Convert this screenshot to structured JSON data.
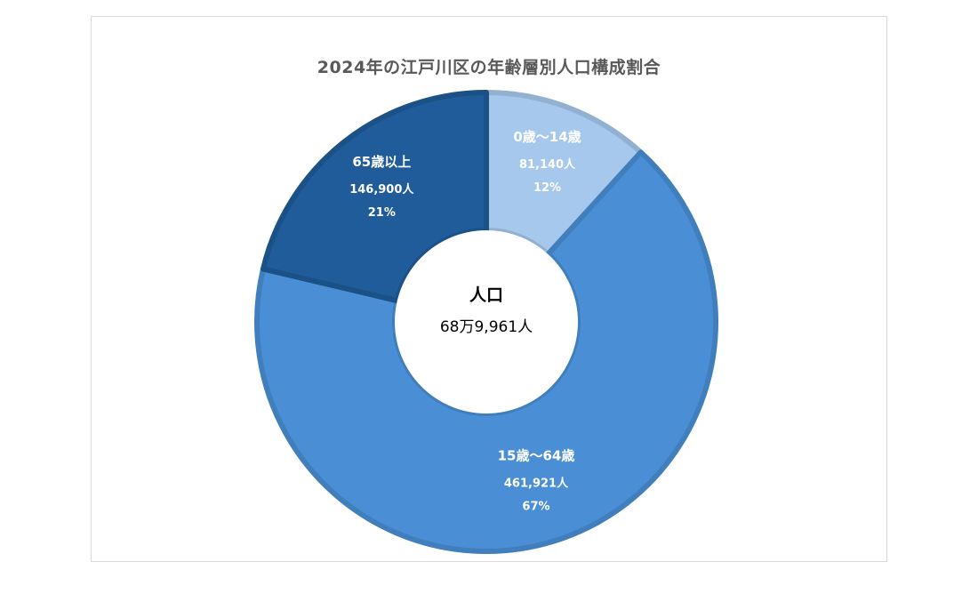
{
  "chart_data": {
    "type": "pie",
    "subtype": "donut",
    "title": "2024年の江戸川区の年齢層別人口構成割合",
    "center": {
      "title": "人口",
      "value": "68万9,961人"
    },
    "slices": [
      {
        "name": "0歳～14歳",
        "value": 81140,
        "value_label": "81,140人",
        "percent_label": "12%",
        "color": "#a6c8ec"
      },
      {
        "name": "15歳～64歳",
        "value": 461921,
        "value_label": "461,921人",
        "percent_label": "67%",
        "color": "#4a8fd6"
      },
      {
        "name": "65歳以上",
        "value": 146900,
        "value_label": "146,900人",
        "percent_label": "21%",
        "color": "#1f5c99"
      }
    ]
  }
}
